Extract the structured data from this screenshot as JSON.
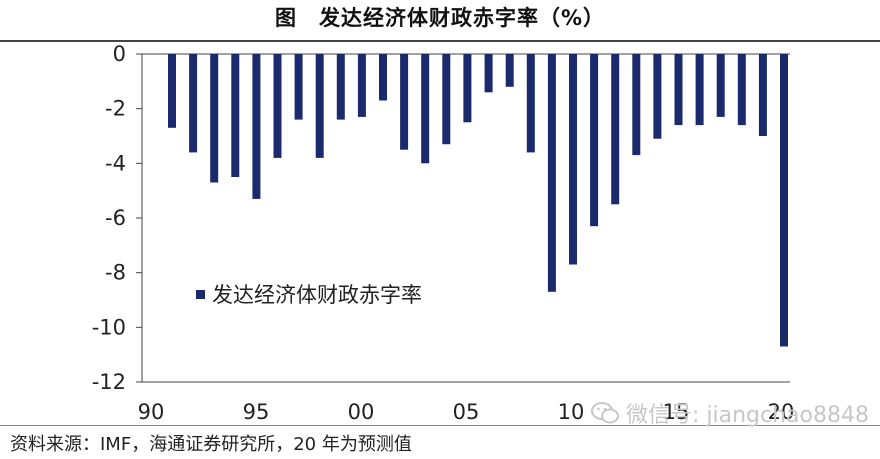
{
  "title": "图　发达经济体财政赤字率（%）",
  "source": "资料来源：IMF，海通证券研究所，20 年为预测值",
  "watermark": "微信号: jiangchao8848",
  "chart_data": {
    "type": "bar",
    "ylim": [
      -12,
      0
    ],
    "yticks": [
      0,
      -2,
      -4,
      -6,
      -8,
      -10,
      -12
    ],
    "xticks": [
      "90",
      "95",
      "00",
      "05",
      "10",
      "15",
      "20"
    ],
    "categories": [
      "1991",
      "1992",
      "1993",
      "1994",
      "1995",
      "1996",
      "1997",
      "1998",
      "1999",
      "2000",
      "2001",
      "2002",
      "2003",
      "2004",
      "2005",
      "2006",
      "2007",
      "2008",
      "2009",
      "2010",
      "2011",
      "2012",
      "2013",
      "2014",
      "2015",
      "2016",
      "2017",
      "2018",
      "2019",
      "2020"
    ],
    "series": [
      {
        "name": "发达经济体财政赤字率",
        "color": "#1a2a6c",
        "values": [
          -2.7,
          -3.6,
          -4.7,
          -4.5,
          -5.3,
          -3.8,
          -2.4,
          -3.8,
          -2.4,
          -2.3,
          -1.7,
          -3.5,
          -4.0,
          -3.3,
          -2.5,
          -1.4,
          -1.2,
          -3.6,
          -8.7,
          -7.7,
          -6.3,
          -5.5,
          -3.7,
          -3.1,
          -2.6,
          -2.6,
          -2.3,
          -2.6,
          -3.0,
          -10.7
        ]
      }
    ],
    "legend_position": "lower-left",
    "grid": false
  }
}
